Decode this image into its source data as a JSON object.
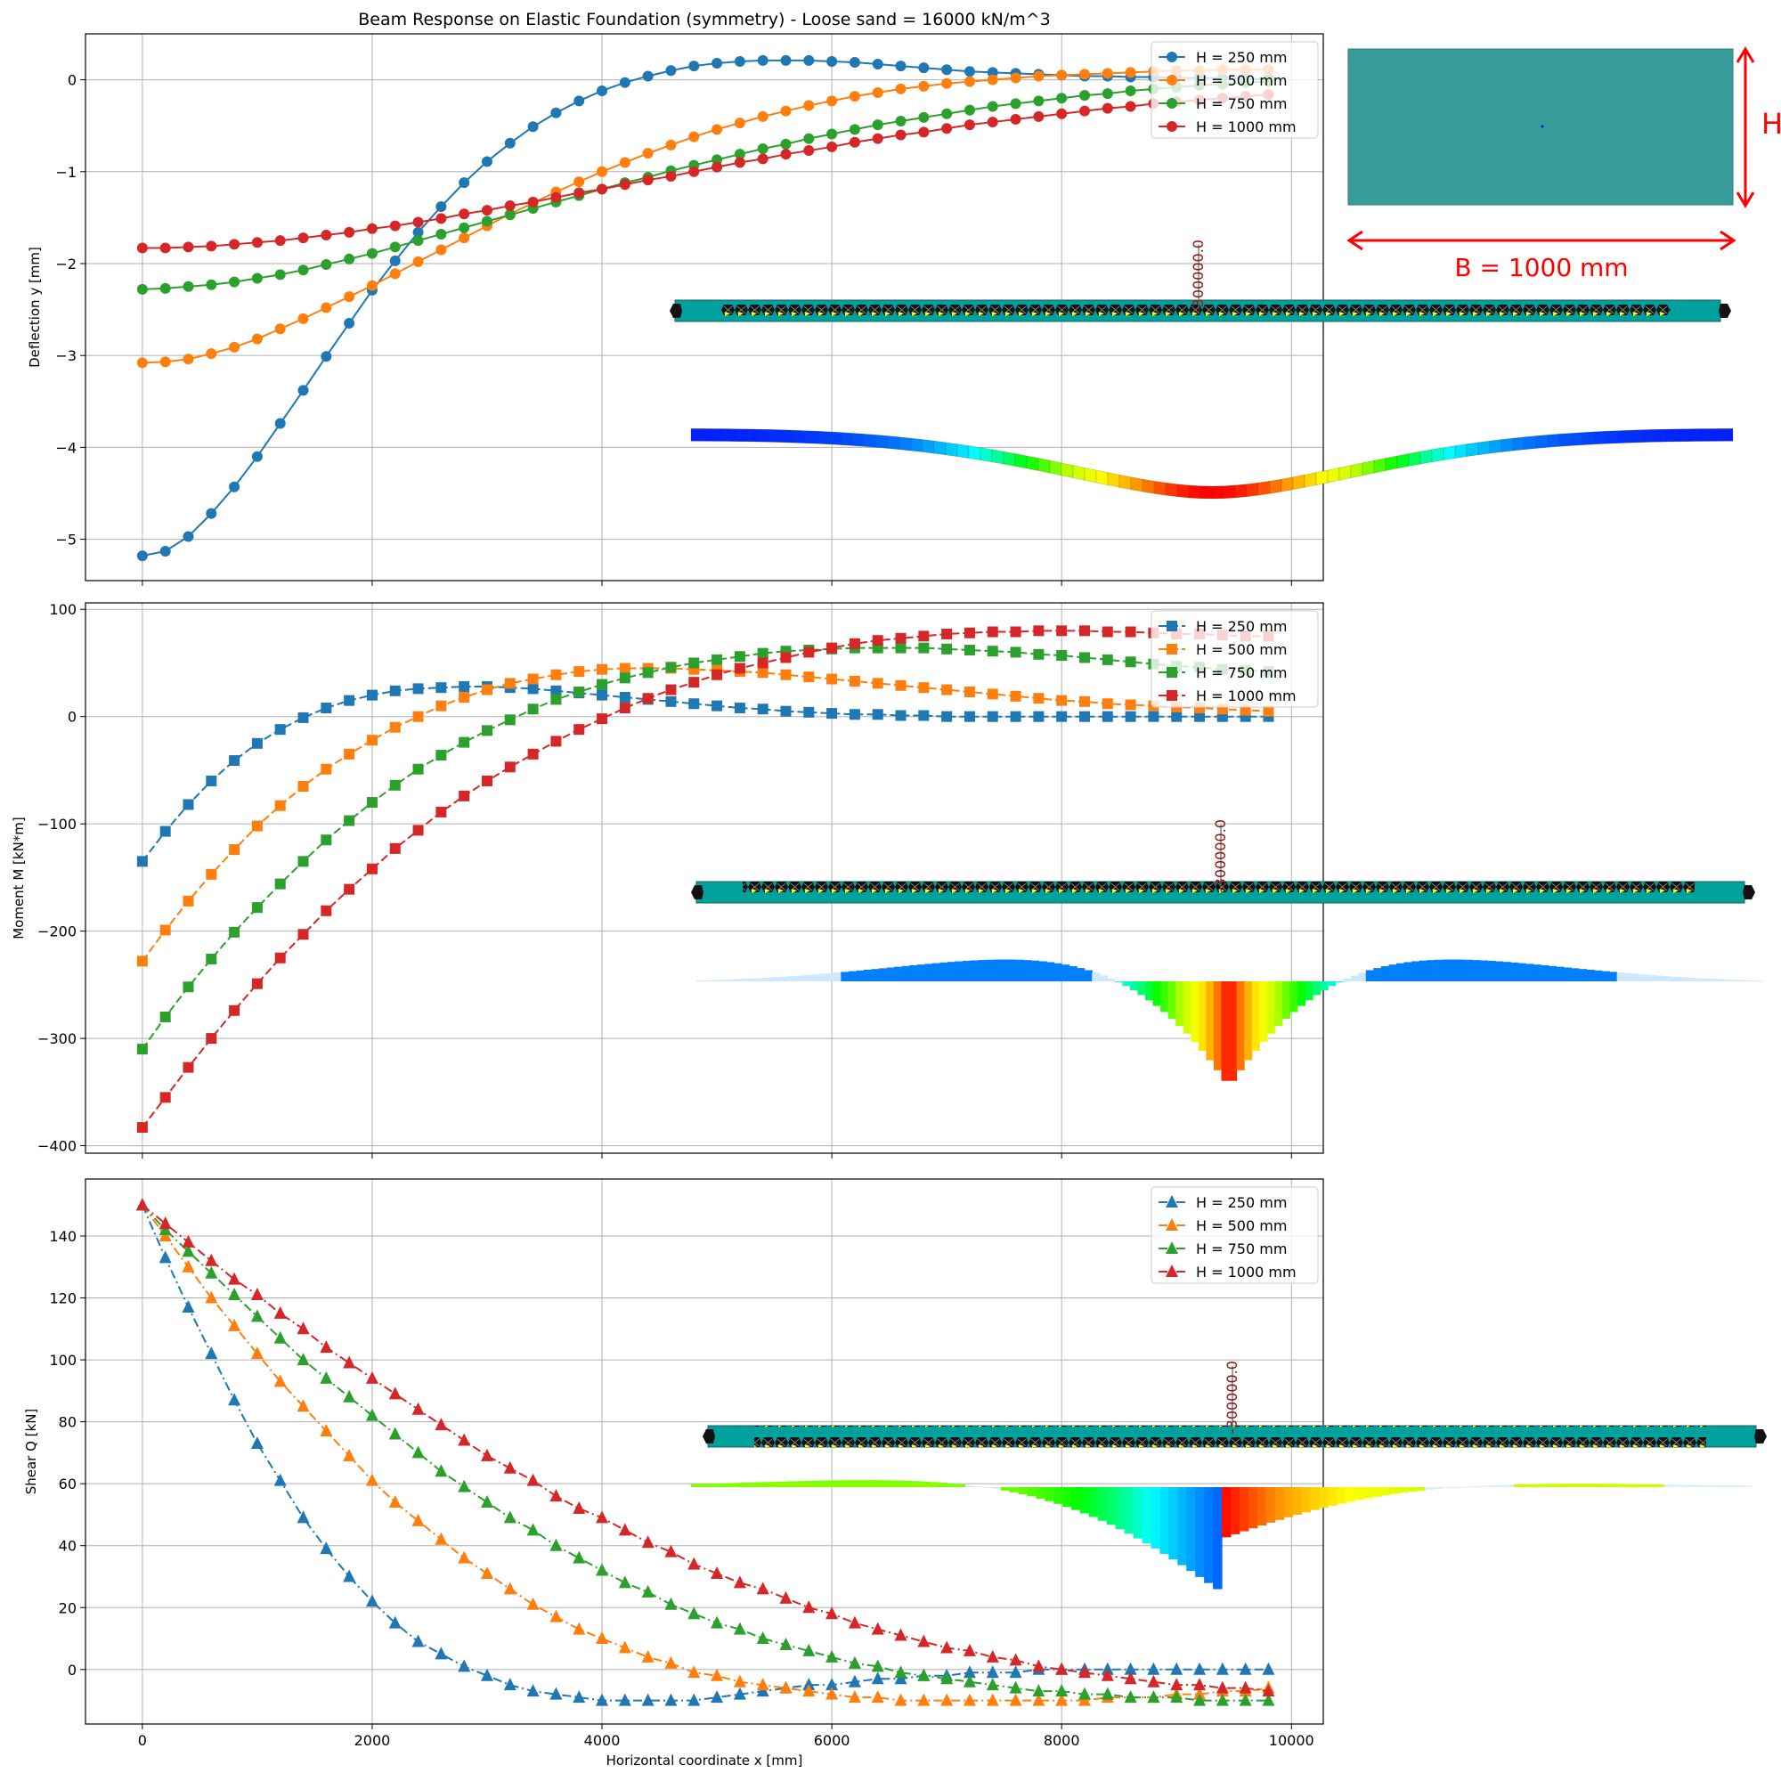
{
  "chart_data": [
    {
      "type": "line",
      "title": "Beam Response on Elastic Foundation (symmetry) - Loose sand = 16000 kN/m^3",
      "xlabel": "",
      "ylabel": "Deflection y [mm]",
      "xlim": [
        -495,
        10277
      ],
      "ylim": [
        -5.45,
        0.5
      ],
      "xticks": [
        0,
        2000,
        4000,
        6000,
        8000,
        10000
      ],
      "yticks": [
        -5,
        -4,
        -3,
        -2,
        -1,
        0
      ],
      "grid": true,
      "legend": "top-right",
      "marker": "circle",
      "linestyle": "solid",
      "x": [
        0,
        200,
        400,
        600,
        800,
        1000,
        1200,
        1400,
        1600,
        1800,
        2000,
        2200,
        2400,
        2600,
        2800,
        3000,
        3200,
        3400,
        3600,
        3800,
        4000,
        4200,
        4400,
        4600,
        4800,
        5000,
        5200,
        5400,
        5600,
        5800,
        6000,
        6200,
        6400,
        6600,
        6800,
        7000,
        7200,
        7400,
        7600,
        7800,
        8000,
        8200,
        8400,
        8600,
        8800,
        9000,
        9200,
        9400,
        9600,
        9800
      ],
      "series": [
        {
          "name": "H = 250 mm",
          "color": "#1f77b4",
          "values": [
            -5.18,
            -5.13,
            -4.97,
            -4.72,
            -4.43,
            -4.1,
            -3.74,
            -3.38,
            -3.01,
            -2.65,
            -2.29,
            -1.97,
            -1.66,
            -1.38,
            -1.12,
            -0.89,
            -0.69,
            -0.51,
            -0.36,
            -0.23,
            -0.12,
            -0.03,
            0.04,
            0.1,
            0.15,
            0.18,
            0.2,
            0.21,
            0.21,
            0.21,
            0.2,
            0.19,
            0.17,
            0.15,
            0.13,
            0.11,
            0.09,
            0.08,
            0.07,
            0.06,
            0.05,
            0.04,
            0.04,
            0.03,
            0.03,
            0.02,
            0.02,
            0.02,
            0.01,
            0.01
          ]
        },
        {
          "name": "H = 500 mm",
          "color": "#ff7f0e",
          "values": [
            -3.08,
            -3.07,
            -3.04,
            -2.98,
            -2.91,
            -2.82,
            -2.71,
            -2.6,
            -2.48,
            -2.36,
            -2.24,
            -2.11,
            -1.98,
            -1.85,
            -1.72,
            -1.59,
            -1.46,
            -1.34,
            -1.22,
            -1.11,
            -1.0,
            -0.9,
            -0.8,
            -0.71,
            -0.62,
            -0.54,
            -0.47,
            -0.4,
            -0.34,
            -0.28,
            -0.23,
            -0.18,
            -0.14,
            -0.1,
            -0.07,
            -0.04,
            -0.02,
            0.0,
            0.02,
            0.04,
            0.05,
            0.06,
            0.07,
            0.08,
            0.09,
            0.1,
            0.1,
            0.11,
            0.11,
            0.11
          ]
        },
        {
          "name": "H = 750 mm",
          "color": "#2ca02c",
          "values": [
            -2.28,
            -2.27,
            -2.25,
            -2.23,
            -2.2,
            -2.16,
            -2.12,
            -2.07,
            -2.01,
            -1.95,
            -1.89,
            -1.82,
            -1.75,
            -1.68,
            -1.61,
            -1.54,
            -1.47,
            -1.4,
            -1.33,
            -1.26,
            -1.19,
            -1.12,
            -1.06,
            -0.99,
            -0.93,
            -0.87,
            -0.81,
            -0.75,
            -0.7,
            -0.64,
            -0.59,
            -0.54,
            -0.49,
            -0.45,
            -0.41,
            -0.37,
            -0.33,
            -0.29,
            -0.26,
            -0.23,
            -0.2,
            -0.17,
            -0.15,
            -0.12,
            -0.1,
            -0.08,
            -0.06,
            -0.05,
            -0.03,
            -0.02
          ]
        },
        {
          "name": "H = 1000 mm",
          "color": "#d62728",
          "values": [
            -1.83,
            -1.83,
            -1.82,
            -1.81,
            -1.79,
            -1.77,
            -1.75,
            -1.72,
            -1.69,
            -1.66,
            -1.62,
            -1.59,
            -1.55,
            -1.51,
            -1.46,
            -1.42,
            -1.37,
            -1.33,
            -1.28,
            -1.23,
            -1.19,
            -1.14,
            -1.09,
            -1.05,
            -1.0,
            -0.95,
            -0.9,
            -0.86,
            -0.81,
            -0.77,
            -0.73,
            -0.68,
            -0.64,
            -0.6,
            -0.57,
            -0.53,
            -0.49,
            -0.46,
            -0.43,
            -0.4,
            -0.37,
            -0.34,
            -0.31,
            -0.29,
            -0.26,
            -0.24,
            -0.22,
            -0.2,
            -0.18,
            -0.16
          ]
        }
      ],
      "annotations": {
        "load_label": "-300000.0",
        "height_label": "H",
        "width_label": "B = 1000 mm"
      }
    },
    {
      "type": "line",
      "xlabel": "",
      "ylabel": "Moment M [kN*m]",
      "xlim": [
        -495,
        10277
      ],
      "ylim": [
        -407,
        106
      ],
      "xticks": [
        0,
        2000,
        4000,
        6000,
        8000,
        10000
      ],
      "yticks": [
        -400,
        -300,
        -200,
        -100,
        0,
        100
      ],
      "grid": true,
      "legend": "top-right",
      "marker": "square",
      "linestyle": "dashed",
      "x": [
        0,
        200,
        400,
        600,
        800,
        1000,
        1200,
        1400,
        1600,
        1800,
        2000,
        2200,
        2400,
        2600,
        2800,
        3000,
        3200,
        3400,
        3600,
        3800,
        4000,
        4200,
        4400,
        4600,
        4800,
        5000,
        5200,
        5400,
        5600,
        5800,
        6000,
        6200,
        6400,
        6600,
        6800,
        7000,
        7200,
        7400,
        7600,
        7800,
        8000,
        8200,
        8400,
        8600,
        8800,
        9000,
        9200,
        9400,
        9600,
        9800
      ],
      "series": [
        {
          "name": "H = 250 mm",
          "color": "#1f77b4",
          "values": [
            -135,
            -107,
            -82,
            -60,
            -41,
            -25,
            -12,
            -1,
            8,
            15,
            20,
            24,
            26,
            27,
            28,
            28,
            27,
            26,
            24,
            22,
            20,
            18,
            16,
            14,
            12,
            10,
            8,
            7,
            5,
            4,
            3,
            2,
            2,
            1,
            1,
            0,
            0,
            0,
            0,
            0,
            0,
            0,
            0,
            0,
            0,
            0,
            0,
            0,
            0,
            0
          ]
        },
        {
          "name": "H = 500 mm",
          "color": "#ff7f0e",
          "values": [
            -228,
            -199,
            -172,
            -147,
            -124,
            -102,
            -83,
            -65,
            -49,
            -35,
            -22,
            -10,
            0,
            10,
            18,
            25,
            31,
            35,
            39,
            42,
            44,
            45,
            45,
            45,
            44,
            43,
            42,
            41,
            39,
            37,
            35,
            33,
            31,
            29,
            27,
            25,
            23,
            21,
            19,
            17,
            15,
            14,
            12,
            11,
            10,
            9,
            8,
            7,
            6,
            5
          ]
        },
        {
          "name": "H = 750 mm",
          "color": "#2ca02c",
          "values": [
            -310,
            -280,
            -252,
            -226,
            -201,
            -178,
            -156,
            -135,
            -115,
            -97,
            -80,
            -64,
            -49,
            -36,
            -24,
            -13,
            -3,
            7,
            16,
            23,
            30,
            36,
            41,
            46,
            50,
            53,
            56,
            59,
            61,
            62,
            63,
            64,
            64,
            64,
            64,
            63,
            62,
            61,
            60,
            58,
            57,
            55,
            53,
            51,
            49,
            47,
            46,
            44,
            43,
            42
          ]
        },
        {
          "name": "H = 1000 mm",
          "color": "#d62728",
          "values": [
            -383,
            -355,
            -327,
            -300,
            -274,
            -249,
            -225,
            -203,
            -181,
            -161,
            -142,
            -123,
            -106,
            -89,
            -74,
            -60,
            -47,
            -35,
            -23,
            -12,
            -2,
            8,
            17,
            25,
            32,
            39,
            45,
            50,
            55,
            60,
            64,
            68,
            71,
            73,
            75,
            77,
            78,
            79,
            79,
            80,
            80,
            80,
            79,
            79,
            78,
            77,
            77,
            76,
            75,
            75
          ]
        }
      ],
      "annotations": {
        "load_label": "-300000.0"
      }
    },
    {
      "type": "line",
      "xlabel": "Horizontal coordinate x [mm]",
      "ylabel": "Shear Q [kN]",
      "xlim": [
        -495,
        10277
      ],
      "ylim": [
        -17.6,
        158.4
      ],
      "xticks": [
        0,
        2000,
        4000,
        6000,
        8000,
        10000
      ],
      "yticks": [
        0,
        20,
        40,
        60,
        80,
        100,
        120,
        140
      ],
      "grid": true,
      "legend": "top-right",
      "marker": "triangle",
      "linestyle": "dashdot",
      "x": [
        0,
        200,
        400,
        600,
        800,
        1000,
        1200,
        1400,
        1600,
        1800,
        2000,
        2200,
        2400,
        2600,
        2800,
        3000,
        3200,
        3400,
        3600,
        3800,
        4000,
        4200,
        4400,
        4600,
        4800,
        5000,
        5200,
        5400,
        5600,
        5800,
        6000,
        6200,
        6400,
        6600,
        6800,
        7000,
        7200,
        7400,
        7600,
        7800,
        8000,
        8200,
        8400,
        8600,
        8800,
        9000,
        9200,
        9400,
        9600,
        9800
      ],
      "series": [
        {
          "name": "H = 250 mm",
          "color": "#1f77b4",
          "values": [
            150,
            133,
            117,
            102,
            87,
            73,
            61,
            49,
            39,
            30,
            22,
            15,
            9,
            5,
            1,
            -2,
            -5,
            -7,
            -8,
            -9,
            -10,
            -10,
            -10,
            -10,
            -10,
            -9,
            -8,
            -7,
            -6,
            -5,
            -5,
            -4,
            -3,
            -3,
            -2,
            -2,
            -1,
            -1,
            -1,
            0,
            0,
            0,
            0,
            0,
            0,
            0,
            0,
            0,
            0,
            0
          ]
        },
        {
          "name": "H = 500 mm",
          "color": "#ff7f0e",
          "values": [
            150,
            140,
            130,
            120,
            111,
            102,
            93,
            85,
            77,
            69,
            61,
            54,
            48,
            42,
            36,
            31,
            26,
            21,
            17,
            13,
            10,
            7,
            4,
            2,
            -1,
            -2,
            -4,
            -5,
            -6,
            -7,
            -8,
            -9,
            -9,
            -10,
            -10,
            -10,
            -10,
            -10,
            -10,
            -10,
            -10,
            -10,
            -9,
            -9,
            -9,
            -8,
            -8,
            -7,
            -7,
            -6
          ]
        },
        {
          "name": "H = 750 mm",
          "color": "#2ca02c",
          "values": [
            150,
            142,
            135,
            128,
            121,
            114,
            107,
            100,
            94,
            88,
            82,
            76,
            70,
            64,
            59,
            54,
            49,
            45,
            40,
            36,
            32,
            28,
            25,
            21,
            18,
            15,
            13,
            10,
            8,
            6,
            4,
            2,
            1,
            -1,
            -2,
            -3,
            -4,
            -5,
            -6,
            -7,
            -7,
            -8,
            -8,
            -9,
            -9,
            -9,
            -10,
            -10,
            -10,
            -10
          ]
        },
        {
          "name": "H = 1000 mm",
          "color": "#d62728",
          "values": [
            150,
            144,
            138,
            132,
            126,
            121,
            115,
            110,
            104,
            99,
            94,
            89,
            84,
            79,
            74,
            69,
            65,
            61,
            56,
            52,
            49,
            45,
            41,
            38,
            34,
            31,
            28,
            26,
            23,
            20,
            18,
            15,
            13,
            11,
            9,
            7,
            6,
            4,
            3,
            1,
            0,
            -1,
            -2,
            -3,
            -4,
            -5,
            -5,
            -6,
            -6,
            -7
          ]
        }
      ],
      "annotations": {
        "load_label": "-300000.0"
      }
    }
  ]
}
